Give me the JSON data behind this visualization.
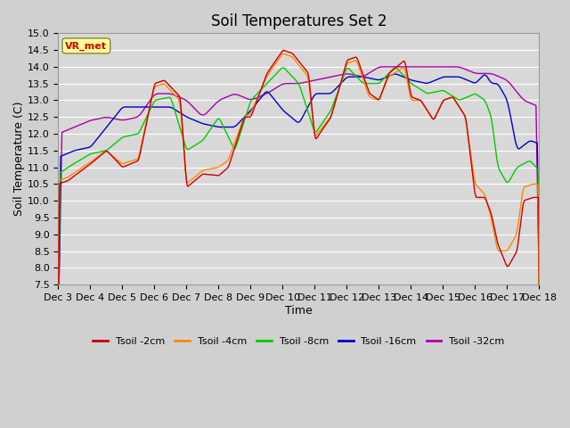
{
  "title": "Soil Temperatures Set 2",
  "xlabel": "Time",
  "ylabel": "Soil Temperature (C)",
  "ylim": [
    7.5,
    15.0
  ],
  "yticks": [
    7.5,
    8.0,
    8.5,
    9.0,
    9.5,
    10.0,
    10.5,
    11.0,
    11.5,
    12.0,
    12.5,
    13.0,
    13.5,
    14.0,
    14.5,
    15.0
  ],
  "xtick_labels": [
    "Dec 3",
    "Dec 4",
    "Dec 5",
    "Dec 6",
    "Dec 7",
    "Dec 8",
    "Dec 9",
    "Dec 10",
    "Dec 11",
    "Dec 12",
    "Dec 13",
    "Dec 14",
    "Dec 15",
    "Dec 16",
    "Dec 17",
    "Dec 18"
  ],
  "series_colors": [
    "#cc0000",
    "#ff8800",
    "#00cc00",
    "#0000cc",
    "#aa00aa"
  ],
  "series_labels": [
    "Tsoil -2cm",
    "Tsoil -4cm",
    "Tsoil -8cm",
    "Tsoil -16cm",
    "Tsoil -32cm"
  ],
  "legend_label": "VR_met",
  "legend_label_color": "#cc0000",
  "legend_box_facecolor": "#ffff99",
  "legend_box_edgecolor": "#888833",
  "fig_facecolor": "#d0d0d0",
  "plot_facecolor": "#d8d8d8",
  "grid_color": "#ffffff",
  "title_fontsize": 12,
  "axis_label_fontsize": 9,
  "tick_fontsize": 8,
  "linewidth": 1.0,
  "figsize": [
    6.4,
    4.8
  ],
  "dpi": 100,
  "n_points": 750
}
